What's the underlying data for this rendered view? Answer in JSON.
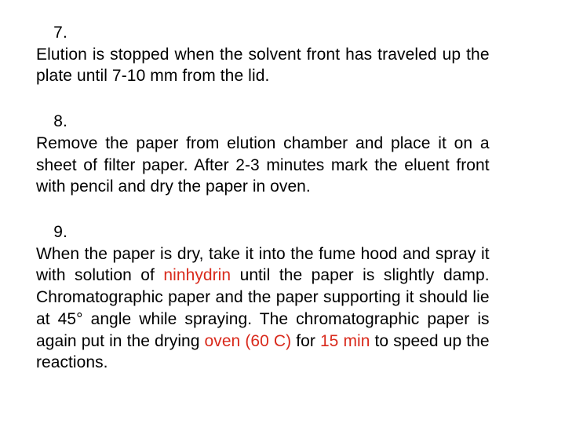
{
  "colors": {
    "text": "#000000",
    "highlight": "#d92a1c",
    "background": "#ffffff"
  },
  "typography": {
    "font_family": "Comic Sans MS",
    "font_size_pt": 16,
    "line_height": 1.32,
    "text_align": "justify"
  },
  "items": [
    {
      "number": "7.",
      "text_plain": "Elution is stopped when the solvent front has traveled up the plate until 7-10 mm from the lid.",
      "segments": [
        {
          "t": "Elution is stopped when the solvent front has traveled up the plate until 7-10 mm from the lid.",
          "hl": false
        }
      ]
    },
    {
      "number": "8.",
      "text_plain": "Remove the paper from elution chamber and place it on a sheet of filter paper. After 2-3 minutes mark the eluent front with pencil and dry the paper in oven.",
      "segments": [
        {
          "t": "Remove the paper from elution chamber and place it on a sheet of filter paper. After 2-3 minutes mark the eluent front with pencil and dry the paper in oven.",
          "hl": false
        }
      ]
    },
    {
      "number": "9.",
      "text_plain": "When the paper is dry, take it into the fume hood and spray it with solution of ninhydrin until the paper is slightly damp. Chromatographic paper and the paper supporting it should lie at 45° angle while spraying. The chromatographic paper is again put in the drying oven (60 C) for 15 min to speed up the reactions.",
      "segments": [
        {
          "t": "When the paper is dry, take it into the fume hood and spray it with solution of ",
          "hl": false
        },
        {
          "t": "ninhydrin",
          "hl": true
        },
        {
          "t": " until the paper is slightly damp. Chromatographic paper and the paper supporting it should lie at 45° angle while spraying. The chromatographic paper is again put in the drying ",
          "hl": false
        },
        {
          "t": "oven (60 C)",
          "hl": true,
          "nowrap": true
        },
        {
          "t": " for ",
          "hl": false
        },
        {
          "t": "15 min",
          "hl": true,
          "nowrap": true
        },
        {
          "t": " to speed up the reactions.",
          "hl": false
        }
      ]
    }
  ]
}
